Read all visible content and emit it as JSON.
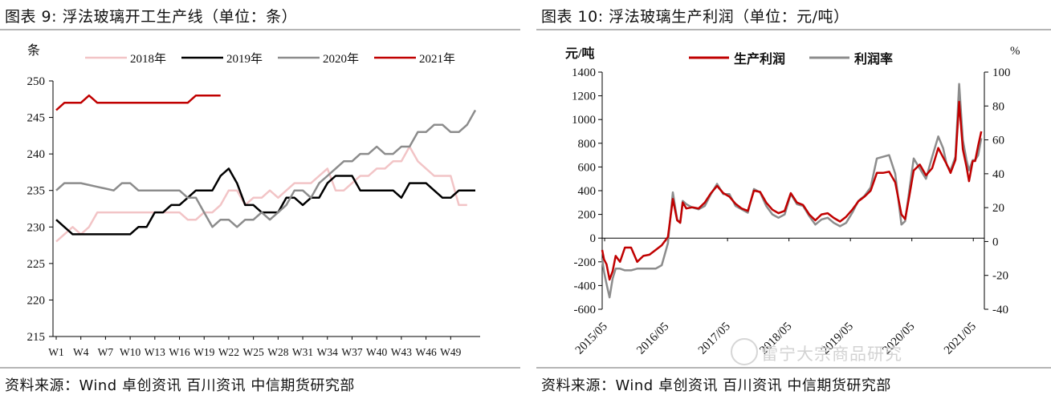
{
  "left": {
    "title": "图表 9:  浮法玻璃开工生产线（单位：条）",
    "source": "资料来源：Wind 卓创资讯 百川资讯 中信期货研究部"
  },
  "right": {
    "title": "图表 10:  浮法玻璃生产利润（单位：元/吨）",
    "source": "资料来源：Wind 卓创资讯 百川资讯 中信期货研究部"
  },
  "watermark": "雷宁大宗商品研究",
  "chart_data": [
    {
      "type": "line",
      "ylabel": "条",
      "ylim": [
        215,
        250
      ],
      "yticks": [
        215,
        220,
        225,
        230,
        235,
        240,
        245,
        250
      ],
      "x": [
        "W1",
        "W2",
        "W3",
        "W4",
        "W5",
        "W6",
        "W7",
        "W8",
        "W9",
        "W10",
        "W11",
        "W12",
        "W13",
        "W14",
        "W15",
        "W16",
        "W17",
        "W18",
        "W19",
        "W20",
        "W21",
        "W22",
        "W23",
        "W24",
        "W25",
        "W26",
        "W27",
        "W28",
        "W29",
        "W30",
        "W31",
        "W32",
        "W33",
        "W34",
        "W35",
        "W36",
        "W37",
        "W38",
        "W39",
        "W40",
        "W41",
        "W42",
        "W43",
        "W44",
        "W45",
        "W46",
        "W47",
        "W48",
        "W49",
        "W50",
        "W51",
        "W52"
      ],
      "xticks": [
        "W1",
        "W4",
        "W7",
        "W10",
        "W13",
        "W16",
        "W19",
        "W22",
        "W25",
        "W28",
        "W31",
        "W34",
        "W37",
        "W40",
        "W43",
        "W46",
        "W49"
      ],
      "legend_position": "top",
      "series": [
        {
          "name": "2018年",
          "color": "#f2c4c6",
          "values": [
            228,
            229,
            230,
            229,
            230,
            232,
            232,
            232,
            232,
            232,
            232,
            232,
            232,
            232,
            232,
            232,
            231,
            231,
            232,
            232,
            233,
            235,
            235,
            233,
            234,
            234,
            235,
            234,
            235,
            236,
            236,
            236,
            237,
            238,
            235,
            235,
            236,
            237,
            237,
            238,
            238,
            239,
            239,
            241,
            239,
            238,
            237,
            237,
            237,
            233,
            233,
            null
          ]
        },
        {
          "name": "2019年",
          "color": "#000000",
          "values": [
            231,
            230,
            229,
            229,
            229,
            229,
            229,
            229,
            229,
            229,
            230,
            230,
            232,
            232,
            233,
            233,
            234,
            235,
            235,
            235,
            237,
            238,
            236,
            233,
            233,
            232,
            232,
            232,
            234,
            234,
            233,
            234,
            234,
            236,
            237,
            237,
            237,
            235,
            235,
            235,
            235,
            235,
            234,
            236,
            236,
            236,
            235,
            234,
            234,
            235,
            235,
            235
          ]
        },
        {
          "name": "2020年",
          "color": "#8c8c8c",
          "values": [
            235,
            236,
            236,
            236,
            235.75,
            235.5,
            235.25,
            235,
            236,
            236,
            235,
            235,
            235,
            235,
            235,
            235,
            234,
            234,
            232,
            230,
            231,
            231,
            230,
            231,
            231,
            232,
            231,
            232,
            233,
            235,
            235,
            234,
            236,
            237,
            238,
            239,
            239,
            240,
            240,
            241,
            240,
            240,
            241,
            241,
            243,
            243,
            244,
            244,
            243,
            243,
            244,
            246
          ]
        },
        {
          "name": "2021年",
          "color": "#c00000",
          "values": [
            246,
            247,
            247,
            247,
            248,
            247,
            247,
            247,
            247,
            247,
            247,
            247,
            247,
            247,
            247,
            247,
            247,
            248,
            248,
            248,
            248,
            null,
            null,
            null,
            null,
            null,
            null,
            null,
            null,
            null,
            null,
            null,
            null,
            null,
            null,
            null,
            null,
            null,
            null,
            null,
            null,
            null,
            null,
            null,
            null,
            null,
            null,
            null,
            null,
            null,
            null,
            null
          ]
        }
      ]
    },
    {
      "type": "line",
      "ylabel": "元/吨",
      "y2label": "%",
      "ylim": [
        -600,
        1400
      ],
      "yticks": [
        -600,
        -400,
        -200,
        0,
        200,
        400,
        600,
        800,
        1000,
        1200,
        1400
      ],
      "y2lim": [
        -40,
        100
      ],
      "y2ticks": [
        -40,
        -20,
        0,
        20,
        40,
        60,
        80,
        100
      ],
      "xticks": [
        "2015/05",
        "2016/05",
        "2017/05",
        "2018/05",
        "2019/05",
        "2020/05",
        "2021/05"
      ],
      "legend_position": "top",
      "series": [
        {
          "name": "生产利润",
          "axis": "left",
          "color": "#c00000",
          "x": [
            2015.33,
            2015.36,
            2015.4,
            2015.45,
            2015.5,
            2015.55,
            2015.62,
            2015.7,
            2015.8,
            2015.9,
            2016.0,
            2016.1,
            2016.2,
            2016.3,
            2016.4,
            2016.48,
            2016.55,
            2016.6,
            2016.64,
            2016.7,
            2016.8,
            2016.9,
            2017.0,
            2017.1,
            2017.2,
            2017.3,
            2017.4,
            2017.5,
            2017.6,
            2017.7,
            2017.8,
            2017.9,
            2018.0,
            2018.1,
            2018.2,
            2018.3,
            2018.4,
            2018.5,
            2018.6,
            2018.7,
            2018.8,
            2018.9,
            2019.0,
            2019.1,
            2019.2,
            2019.3,
            2019.4,
            2019.5,
            2019.6,
            2019.7,
            2019.8,
            2019.9,
            2020.0,
            2020.1,
            2020.2,
            2020.26,
            2020.32,
            2020.4,
            2020.5,
            2020.6,
            2020.7,
            2020.8,
            2020.88,
            2020.94,
            2021.0,
            2021.08,
            2021.14,
            2021.2,
            2021.26,
            2021.3,
            2021.36,
            2021.4,
            2021.45,
            2021.5
          ],
          "y": [
            -100,
            -180,
            -220,
            -350,
            -280,
            -150,
            -200,
            -80,
            -80,
            -200,
            -150,
            -140,
            -100,
            -60,
            10,
            330,
            150,
            130,
            300,
            250,
            260,
            250,
            300,
            380,
            440,
            380,
            350,
            290,
            250,
            230,
            400,
            390,
            300,
            240,
            210,
            230,
            380,
            300,
            280,
            200,
            150,
            200,
            210,
            170,
            140,
            180,
            240,
            310,
            350,
            400,
            550,
            550,
            560,
            470,
            200,
            160,
            330,
            570,
            620,
            530,
            590,
            760,
            680,
            620,
            550,
            660,
            1150,
            750,
            600,
            480,
            650,
            650,
            780,
            900
          ]
        },
        {
          "name": "利润率",
          "axis": "right",
          "color": "#8c8c8c",
          "x": [
            2015.33,
            2015.36,
            2015.4,
            2015.45,
            2015.5,
            2015.55,
            2015.62,
            2015.7,
            2015.8,
            2015.9,
            2016.0,
            2016.1,
            2016.2,
            2016.3,
            2016.4,
            2016.48,
            2016.55,
            2016.6,
            2016.64,
            2016.7,
            2016.8,
            2016.9,
            2017.0,
            2017.1,
            2017.2,
            2017.3,
            2017.4,
            2017.5,
            2017.6,
            2017.7,
            2017.8,
            2017.9,
            2018.0,
            2018.1,
            2018.2,
            2018.3,
            2018.4,
            2018.5,
            2018.6,
            2018.7,
            2018.8,
            2018.9,
            2019.0,
            2019.1,
            2019.2,
            2019.3,
            2019.4,
            2019.5,
            2019.6,
            2019.7,
            2019.8,
            2019.9,
            2020.0,
            2020.1,
            2020.2,
            2020.26,
            2020.32,
            2020.4,
            2020.5,
            2020.6,
            2020.7,
            2020.8,
            2020.88,
            2020.94,
            2021.0,
            2021.08,
            2021.14,
            2021.2,
            2021.26,
            2021.3,
            2021.36,
            2021.4,
            2021.45,
            2021.5
          ],
          "y": [
            -10,
            -18,
            -25,
            -33,
            -22,
            -16,
            -16,
            -17,
            -17,
            -16,
            -16,
            -16,
            -16,
            -14,
            -1,
            29,
            13,
            11,
            24,
            22,
            20,
            19,
            21,
            28,
            34,
            28,
            28,
            21,
            19,
            17,
            31,
            29,
            21,
            16,
            14,
            16,
            28,
            22,
            21,
            15,
            10,
            13,
            14,
            11,
            9,
            11,
            17,
            24,
            27,
            32,
            49,
            50,
            51,
            40,
            10,
            12,
            28,
            49,
            43,
            37,
            50,
            62,
            55,
            45,
            42,
            50,
            93,
            60,
            48,
            42,
            48,
            48,
            51,
            61
          ]
        }
      ]
    }
  ]
}
